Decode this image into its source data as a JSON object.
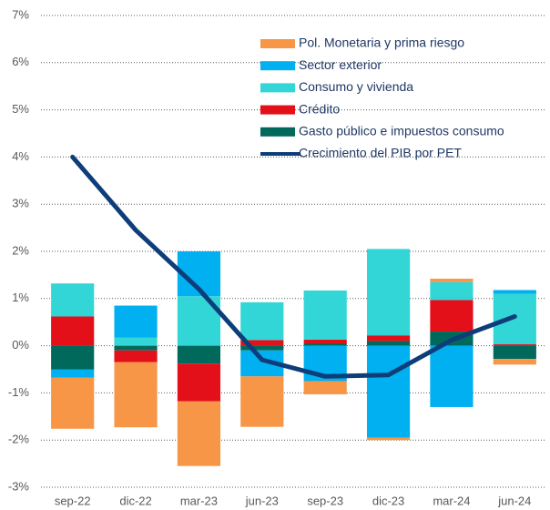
{
  "chart_data": {
    "type": "bar",
    "categories": [
      "sep-22",
      "dic-22",
      "mar-23",
      "jun-23",
      "sep-23",
      "dic-23",
      "mar-24",
      "jun-24"
    ],
    "series": [
      {
        "name": "Pol. Monetaria y prima riesgo",
        "type": "bar",
        "color": "#f79646",
        "values": [
          -1.08,
          -1.38,
          -1.37,
          -1.07,
          -0.28,
          -0.05,
          0.07,
          -0.12
        ]
      },
      {
        "name": "Sector exterior",
        "type": "bar",
        "color": "#00b0f0",
        "values": [
          -0.18,
          0.68,
          0.95,
          -0.55,
          -0.75,
          -1.95,
          -1.3,
          0.08
        ]
      },
      {
        "name": "Consumo y vivienda",
        "type": "bar",
        "color": "#33d6d6",
        "values": [
          0.7,
          0.17,
          1.05,
          0.8,
          1.04,
          1.83,
          0.38,
          1.07
        ]
      },
      {
        "name": "Crédito",
        "type": "bar",
        "color": "#e3101a",
        "values": [
          0.62,
          -0.25,
          -0.8,
          0.12,
          0.08,
          0.12,
          0.67,
          0.03
        ]
      },
      {
        "name": "Gasto público e impuestos consumo",
        "type": "bar",
        "color": "#00695c",
        "values": [
          -0.5,
          -0.1,
          -0.38,
          -0.1,
          0.05,
          0.1,
          0.3,
          -0.28
        ]
      },
      {
        "name": "Crecimiento del PIB por PET",
        "type": "line",
        "color": "#0d3e7a",
        "values": [
          4.0,
          2.45,
          1.2,
          -0.3,
          -0.65,
          -0.62,
          0.12,
          0.62
        ]
      }
    ],
    "ylim": [
      -3,
      7
    ],
    "yticks": [
      {
        "value": -3,
        "label": "-3%"
      },
      {
        "value": -2,
        "label": "-2%"
      },
      {
        "value": -1,
        "label": "-1%"
      },
      {
        "value": 0,
        "label": "0%"
      },
      {
        "value": 1,
        "label": "1%"
      },
      {
        "value": 2,
        "label": "2%"
      },
      {
        "value": 3,
        "label": "3%"
      },
      {
        "value": 4,
        "label": "4%"
      },
      {
        "value": 5,
        "label": "5%"
      },
      {
        "value": 6,
        "label": "6%"
      },
      {
        "value": 7,
        "label": "7%"
      }
    ],
    "grid": true
  }
}
